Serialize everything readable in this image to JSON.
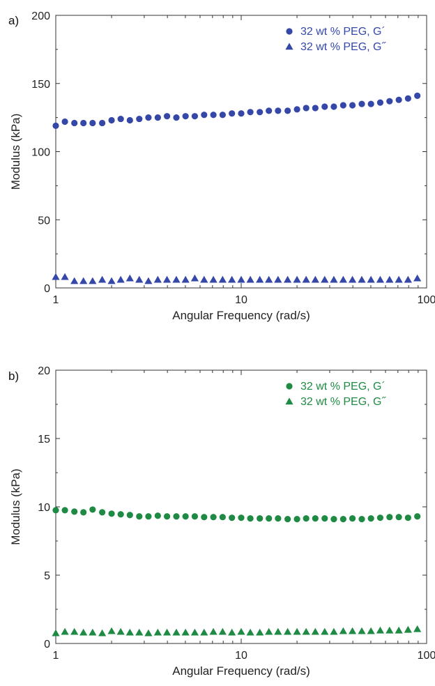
{
  "chart_data": [
    {
      "type": "scatter",
      "panel_label": "a)",
      "xlabel": "Angular Frequency (rad/s)",
      "ylabel": "Modulus (kPa)",
      "xscale": "log",
      "xlim": [
        1,
        100
      ],
      "ylim": [
        0,
        200
      ],
      "xticks": [
        "1",
        "10",
        "100"
      ],
      "yticks": [
        "0",
        "50",
        "100",
        "150",
        "200"
      ],
      "legend_position": "top-right",
      "color": "#3548a8",
      "series": [
        {
          "name": "32 wt % PEG, G´",
          "marker": "circle",
          "x": [
            1.0,
            1.12,
            1.26,
            1.41,
            1.58,
            1.78,
            2.0,
            2.24,
            2.51,
            2.82,
            3.16,
            3.55,
            3.98,
            4.47,
            5.01,
            5.62,
            6.31,
            7.08,
            7.94,
            8.91,
            10.0,
            11.2,
            12.6,
            14.1,
            15.8,
            17.8,
            20.0,
            22.4,
            25.1,
            28.2,
            31.6,
            35.5,
            39.8,
            44.7,
            50.1,
            56.2,
            63.1,
            70.8,
            79.4,
            89.1
          ],
          "values": [
            119,
            122,
            121,
            121,
            121,
            121,
            123,
            124,
            123,
            124,
            125,
            125,
            126,
            125,
            126,
            126,
            127,
            127,
            127,
            128,
            128,
            129,
            129,
            130,
            130,
            130,
            131,
            132,
            132,
            133,
            133,
            134,
            134,
            135,
            135,
            136,
            137,
            138,
            139,
            141
          ]
        },
        {
          "name": "32 wt % PEG, G˝",
          "marker": "triangle",
          "x": [
            1.0,
            1.12,
            1.26,
            1.41,
            1.58,
            1.78,
            2.0,
            2.24,
            2.51,
            2.82,
            3.16,
            3.55,
            3.98,
            4.47,
            5.01,
            5.62,
            6.31,
            7.08,
            7.94,
            8.91,
            10.0,
            11.2,
            12.6,
            14.1,
            15.8,
            17.8,
            20.0,
            22.4,
            25.1,
            28.2,
            31.6,
            35.5,
            39.8,
            44.7,
            50.1,
            56.2,
            63.1,
            70.8,
            79.4,
            89.1
          ],
          "values": [
            8,
            8,
            5,
            5,
            5,
            6,
            5,
            6,
            7,
            6,
            5,
            6,
            6,
            6,
            6,
            7,
            6,
            6,
            6,
            6,
            6,
            6,
            6,
            6,
            6,
            6,
            6,
            6,
            6,
            6,
            6,
            6,
            6,
            6,
            6,
            6,
            6,
            6,
            6,
            7
          ]
        }
      ]
    },
    {
      "type": "scatter",
      "panel_label": "b)",
      "xlabel": "Angular Frequency (rad/s)",
      "ylabel": "Modulus (kPa)",
      "xscale": "log",
      "xlim": [
        1,
        100
      ],
      "ylim": [
        0,
        20
      ],
      "xticks": [
        "1",
        "10",
        "100"
      ],
      "yticks": [
        "0",
        "5",
        "10",
        "15",
        "20"
      ],
      "legend_position": "top-right",
      "color": "#1f8a43",
      "series": [
        {
          "name": "32 wt % PEG, G´",
          "marker": "circle",
          "x": [
            1.0,
            1.12,
            1.26,
            1.41,
            1.58,
            1.78,
            2.0,
            2.24,
            2.51,
            2.82,
            3.16,
            3.55,
            3.98,
            4.47,
            5.01,
            5.62,
            6.31,
            7.08,
            7.94,
            8.91,
            10.0,
            11.2,
            12.6,
            14.1,
            15.8,
            17.8,
            20.0,
            22.4,
            25.1,
            28.2,
            31.6,
            35.5,
            39.8,
            44.7,
            50.1,
            56.2,
            63.1,
            70.8,
            79.4,
            89.1
          ],
          "values": [
            9.75,
            9.75,
            9.65,
            9.6,
            9.8,
            9.6,
            9.5,
            9.45,
            9.4,
            9.3,
            9.3,
            9.35,
            9.3,
            9.3,
            9.3,
            9.3,
            9.25,
            9.25,
            9.25,
            9.2,
            9.2,
            9.15,
            9.15,
            9.15,
            9.15,
            9.1,
            9.1,
            9.15,
            9.15,
            9.15,
            9.1,
            9.1,
            9.15,
            9.1,
            9.15,
            9.2,
            9.25,
            9.25,
            9.2,
            9.3
          ]
        },
        {
          "name": "32 wt % PEG, G˝",
          "marker": "triangle",
          "x": [
            1.0,
            1.12,
            1.26,
            1.41,
            1.58,
            1.78,
            2.0,
            2.24,
            2.51,
            2.82,
            3.16,
            3.55,
            3.98,
            4.47,
            5.01,
            5.62,
            6.31,
            7.08,
            7.94,
            8.91,
            10.0,
            11.2,
            12.6,
            14.1,
            15.8,
            17.8,
            20.0,
            22.4,
            25.1,
            28.2,
            31.6,
            35.5,
            39.8,
            44.7,
            50.1,
            56.2,
            63.1,
            70.8,
            79.4,
            89.1
          ],
          "values": [
            0.75,
            0.85,
            0.85,
            0.8,
            0.8,
            0.75,
            0.9,
            0.85,
            0.8,
            0.8,
            0.75,
            0.8,
            0.8,
            0.8,
            0.8,
            0.8,
            0.8,
            0.85,
            0.85,
            0.8,
            0.85,
            0.8,
            0.8,
            0.85,
            0.85,
            0.85,
            0.85,
            0.85,
            0.85,
            0.85,
            0.85,
            0.9,
            0.9,
            0.9,
            0.9,
            0.95,
            0.95,
            0.95,
            1.0,
            1.05
          ]
        }
      ]
    }
  ]
}
